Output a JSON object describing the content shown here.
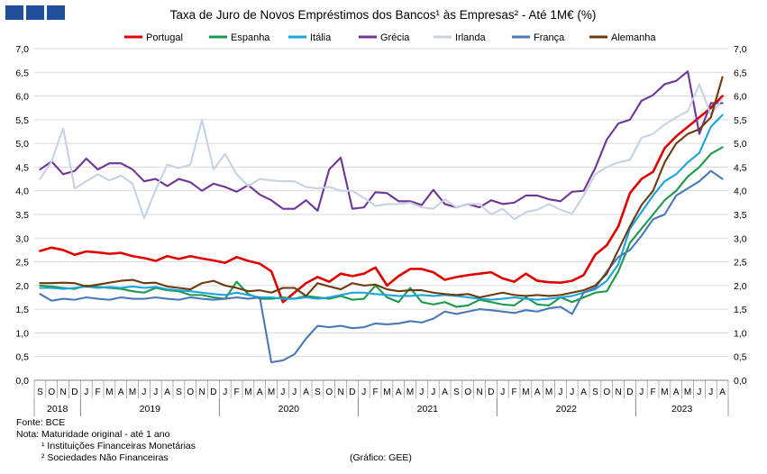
{
  "header": {
    "logo_colors": [
      "#1f4e9a",
      "#1f4e9a",
      "#1f4e9a"
    ]
  },
  "footer": {
    "fonte": "Fonte: BCE",
    "nota": "Nota: Maturidade original - até 1 ano",
    "nota1": "¹ Instituições Financeiras Monetárias",
    "nota2": "² Sociedades Não Financeiras",
    "grafico": "(Gráfico: GEE)"
  },
  "chart_data": {
    "type": "line",
    "title": "Taxa de Juro de Novos Empréstimos dos Bancos¹ às Empresas² - Até 1M€ (%)",
    "ylim": [
      0,
      7
    ],
    "yticks": [
      "0,0",
      "0,5",
      "1,0",
      "1,5",
      "2,0",
      "2,5",
      "3,0",
      "3,5",
      "4,0",
      "4,5",
      "5,0",
      "5,5",
      "6,0",
      "6,5",
      "7,0"
    ],
    "grid": true,
    "legend_position": "top",
    "month_labels": [
      "S",
      "O",
      "N",
      "D",
      "J",
      "F",
      "M",
      "A",
      "M",
      "J",
      "J",
      "A",
      "S",
      "O",
      "N",
      "D",
      "J",
      "F",
      "M",
      "A",
      "M",
      "J",
      "J",
      "A",
      "S",
      "O",
      "N",
      "D",
      "J",
      "F",
      "M",
      "A",
      "M",
      "J",
      "J",
      "A",
      "S",
      "O",
      "N",
      "D",
      "J",
      "F",
      "M",
      "A",
      "M",
      "J",
      "J",
      "A",
      "S",
      "O",
      "N",
      "D",
      "J",
      "F",
      "M",
      "A",
      "M",
      "J",
      "J",
      "A"
    ],
    "years": [
      {
        "label": "2018",
        "start": 0,
        "count": 4
      },
      {
        "label": "2019",
        "start": 4,
        "count": 12
      },
      {
        "label": "2020",
        "start": 16,
        "count": 12
      },
      {
        "label": "2021",
        "start": 28,
        "count": 12
      },
      {
        "label": "2022",
        "start": 40,
        "count": 12
      },
      {
        "label": "2023",
        "start": 52,
        "count": 8
      }
    ],
    "series": [
      {
        "name": "Portugal",
        "color": "#e00000",
        "values": [
          2.73,
          2.8,
          2.75,
          2.65,
          2.72,
          2.7,
          2.67,
          2.69,
          2.62,
          2.58,
          2.52,
          2.62,
          2.56,
          2.62,
          2.57,
          2.53,
          2.48,
          2.6,
          2.52,
          2.46,
          2.3,
          1.65,
          1.85,
          2.05,
          2.18,
          2.08,
          2.25,
          2.2,
          2.25,
          2.38,
          2.0,
          2.2,
          2.35,
          2.35,
          2.28,
          2.12,
          2.18,
          2.22,
          2.25,
          2.28,
          2.15,
          2.08,
          2.25,
          2.1,
          2.07,
          2.06,
          2.1,
          2.22,
          2.65,
          2.85,
          3.25,
          3.95,
          4.25,
          4.4,
          4.9,
          5.15,
          5.35,
          5.55,
          5.75,
          6.0
        ]
      },
      {
        "name": "Espanha",
        "color": "#1a9a48",
        "values": [
          2.0,
          1.98,
          1.95,
          1.93,
          2.0,
          1.97,
          1.95,
          1.93,
          1.88,
          1.85,
          1.95,
          1.9,
          1.88,
          1.8,
          1.8,
          1.75,
          1.72,
          2.08,
          1.82,
          1.72,
          1.72,
          1.75,
          1.72,
          1.78,
          1.75,
          1.72,
          1.78,
          1.7,
          1.72,
          2.0,
          1.75,
          1.65,
          1.95,
          1.65,
          1.6,
          1.65,
          1.55,
          1.58,
          1.7,
          1.65,
          1.6,
          1.58,
          1.75,
          1.6,
          1.58,
          1.75,
          1.65,
          1.75,
          1.85,
          1.88,
          2.3,
          2.9,
          3.2,
          3.5,
          3.8,
          4.0,
          4.3,
          4.5,
          4.78,
          4.92
        ]
      },
      {
        "name": "Itália",
        "color": "#1aa3dc",
        "values": [
          1.95,
          1.95,
          1.93,
          1.95,
          1.98,
          1.95,
          1.97,
          1.95,
          1.98,
          1.95,
          1.97,
          1.92,
          1.9,
          1.88,
          1.85,
          1.82,
          1.8,
          1.85,
          1.8,
          1.75,
          1.75,
          1.72,
          1.72,
          1.75,
          1.72,
          1.75,
          1.8,
          1.85,
          1.85,
          1.82,
          1.8,
          1.78,
          1.78,
          1.8,
          1.78,
          1.8,
          1.78,
          1.75,
          1.72,
          1.7,
          1.72,
          1.75,
          1.72,
          1.7,
          1.72,
          1.75,
          1.78,
          1.85,
          1.92,
          2.1,
          2.45,
          3.2,
          3.55,
          3.9,
          4.2,
          4.35,
          4.6,
          4.8,
          5.35,
          5.6
        ]
      },
      {
        "name": "Grécia",
        "color": "#6f3596",
        "values": [
          4.45,
          4.62,
          4.35,
          4.42,
          4.68,
          4.45,
          4.58,
          4.58,
          4.45,
          4.2,
          4.25,
          4.1,
          4.25,
          4.18,
          4.0,
          4.15,
          4.08,
          3.98,
          4.12,
          3.92,
          3.8,
          3.62,
          3.62,
          3.8,
          3.58,
          4.45,
          4.7,
          3.62,
          3.65,
          3.97,
          3.95,
          3.78,
          3.78,
          3.7,
          4.02,
          3.72,
          3.65,
          3.72,
          3.65,
          3.8,
          3.72,
          3.75,
          3.9,
          3.9,
          3.82,
          3.78,
          3.98,
          4.0,
          4.48,
          5.08,
          5.42,
          5.5,
          5.9,
          6.02,
          6.25,
          6.32,
          6.52,
          5.2,
          5.85,
          5.85
        ]
      },
      {
        "name": "Irlanda",
        "color": "#c6d3e2",
        "values": [
          4.25,
          4.62,
          5.32,
          4.05,
          4.2,
          4.35,
          4.22,
          4.32,
          4.15,
          3.42,
          4.02,
          4.55,
          4.48,
          4.55,
          5.5,
          4.45,
          4.78,
          4.35,
          4.1,
          4.25,
          4.22,
          4.2,
          4.2,
          4.08,
          4.05,
          4.08,
          4.0,
          4.0,
          3.85,
          3.68,
          3.72,
          3.72,
          3.75,
          3.65,
          3.62,
          3.82,
          3.65,
          3.72,
          3.72,
          3.5,
          3.62,
          3.4,
          3.55,
          3.6,
          3.72,
          3.6,
          3.52,
          3.9,
          4.35,
          4.5,
          4.6,
          4.65,
          5.12,
          5.2,
          5.4,
          5.55,
          5.68,
          6.25,
          5.6,
          5.95
        ]
      },
      {
        "name": "França",
        "color": "#4a78b8",
        "values": [
          1.82,
          1.68,
          1.72,
          1.7,
          1.75,
          1.72,
          1.7,
          1.75,
          1.72,
          1.72,
          1.75,
          1.72,
          1.7,
          1.75,
          1.72,
          1.7,
          1.72,
          1.75,
          1.72,
          1.75,
          0.38,
          0.42,
          0.55,
          0.88,
          1.15,
          1.12,
          1.15,
          1.1,
          1.12,
          1.2,
          1.18,
          1.2,
          1.25,
          1.22,
          1.3,
          1.45,
          1.4,
          1.45,
          1.5,
          1.48,
          1.45,
          1.42,
          1.48,
          1.45,
          1.52,
          1.55,
          1.4,
          1.85,
          1.95,
          2.3,
          2.6,
          2.75,
          3.05,
          3.4,
          3.5,
          3.9,
          4.05,
          4.2,
          4.42,
          4.25
        ]
      },
      {
        "name": "Alemanha",
        "color": "#6b3a0e",
        "values": [
          2.05,
          2.05,
          2.06,
          2.05,
          1.98,
          2.02,
          2.06,
          2.1,
          2.12,
          2.05,
          2.06,
          1.98,
          1.95,
          1.92,
          2.05,
          2.1,
          2.0,
          1.95,
          1.88,
          1.9,
          1.85,
          1.95,
          1.95,
          1.78,
          2.05,
          1.98,
          1.92,
          2.05,
          2.0,
          2.02,
          1.92,
          1.88,
          1.9,
          1.9,
          1.85,
          1.82,
          1.8,
          1.82,
          1.75,
          1.8,
          1.85,
          1.8,
          1.78,
          1.8,
          1.78,
          1.8,
          1.85,
          1.9,
          2.0,
          2.25,
          2.75,
          3.25,
          3.7,
          4.0,
          4.6,
          5.0,
          5.2,
          5.3,
          5.55,
          6.4
        ]
      }
    ]
  }
}
